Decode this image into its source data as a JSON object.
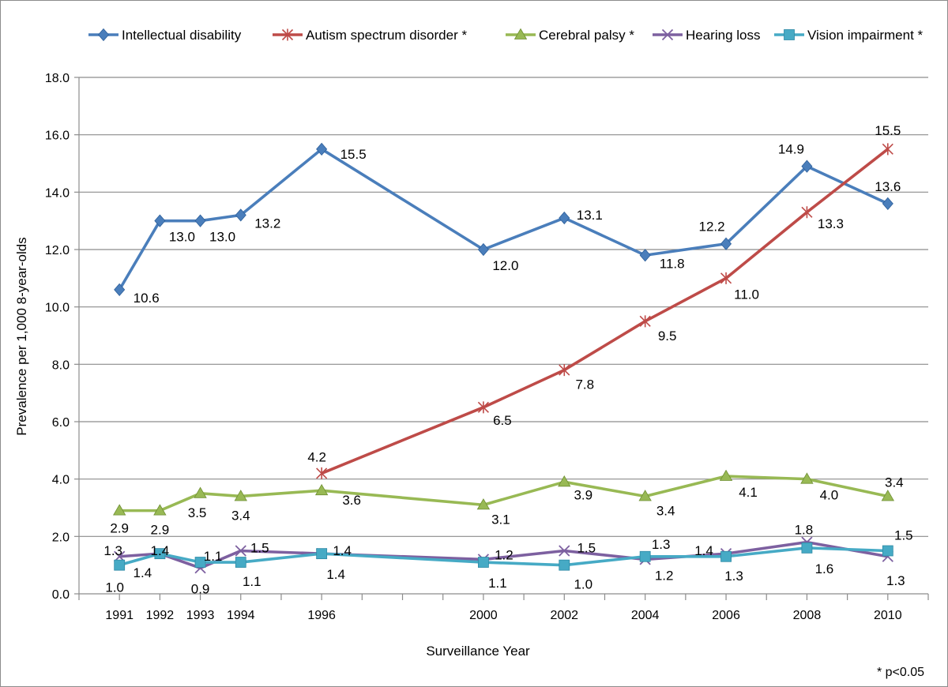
{
  "chart_data": {
    "type": "line",
    "title": "",
    "xlabel": "Surveillance Year",
    "ylabel": "Prevalence per 1,000 8-year-olds",
    "ylim": [
      0,
      18
    ],
    "ytick_step": 2,
    "ytick_labels": [
      "0.0",
      "2.0",
      "4.0",
      "6.0",
      "8.0",
      "10.0",
      "12.0",
      "14.0",
      "16.0",
      "18.0"
    ],
    "x": [
      1991,
      1992,
      1993,
      1994,
      1996,
      2000,
      2002,
      2004,
      2006,
      2008,
      2010
    ],
    "xtick_labels": [
      "1991",
      "1992",
      "1993",
      "1994",
      "1996",
      "2000",
      "2002",
      "2004",
      "2006",
      "2008",
      "2010"
    ],
    "grid": true,
    "legend_position": "top",
    "note": "* p<0.05",
    "series": [
      {
        "name": "Intellectual disability",
        "color": "#4a7ebb",
        "marker": "diamond",
        "values": [
          10.6,
          13.0,
          13.0,
          13.2,
          15.5,
          12.0,
          13.1,
          11.8,
          12.2,
          14.9,
          13.6
        ],
        "labels": [
          "10.6",
          "13.0",
          "13.0",
          "13.2",
          "15.5",
          "12.0",
          "13.1",
          "11.8",
          "12.2",
          "14.9",
          "13.6"
        ]
      },
      {
        "name": "Autism spectrum disorder *",
        "color": "#be4b48",
        "marker": "star",
        "values": [
          null,
          null,
          null,
          null,
          4.2,
          6.5,
          7.8,
          9.5,
          11.0,
          13.3,
          15.5
        ],
        "labels": [
          null,
          null,
          null,
          null,
          "4.2",
          "6.5",
          "7.8",
          "9.5",
          "11.0",
          "13.3",
          "15.5"
        ]
      },
      {
        "name": "Cerebral palsy *",
        "color": "#98b954",
        "marker": "triangle",
        "values": [
          2.9,
          2.9,
          3.5,
          3.4,
          3.6,
          3.1,
          3.9,
          3.4,
          4.1,
          4.0,
          3.4
        ],
        "labels": [
          "2.9",
          "2.9",
          "3.5",
          "3.4",
          "3.6",
          "3.1",
          "3.9",
          "3.4",
          "4.1",
          "4.0",
          "3.4"
        ]
      },
      {
        "name": "Hearing loss",
        "color": "#7d60a0",
        "marker": "x",
        "values": [
          1.3,
          1.4,
          0.9,
          1.5,
          1.4,
          1.2,
          1.5,
          1.2,
          1.4,
          1.8,
          1.3
        ],
        "labels": [
          "1.3",
          "1.4",
          "0.9",
          "1.5",
          "1.4",
          "1.2",
          "1.5",
          "1.2",
          "1.4",
          "1.8",
          "1.3"
        ]
      },
      {
        "name": "Vision impairment *",
        "color": "#46aac5",
        "marker": "square",
        "values": [
          1.0,
          1.4,
          1.1,
          1.1,
          1.4,
          1.1,
          1.0,
          1.3,
          1.3,
          1.6,
          1.5
        ],
        "labels": [
          "1.0",
          "1.4",
          "1.1",
          "1.1",
          "1.4",
          "1.1",
          "1.0",
          "1.3",
          "1.3",
          "1.6",
          "1.5"
        ]
      }
    ]
  }
}
